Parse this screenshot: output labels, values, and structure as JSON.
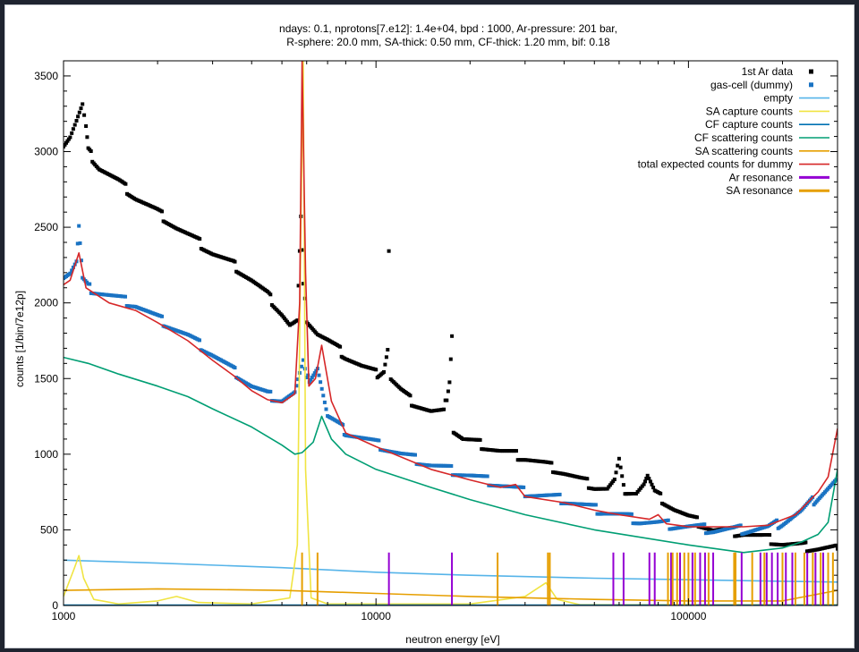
{
  "chart_data": {
    "type": "line",
    "title": "ndays: 0.1, nprotons[7.e12]:  1.4e+04, bpd : 1000, Ar-pressure: 201 bar,",
    "subtitle": "R-sphere: 20.0 mm, SA-thick: 0.50 mm, CF-thick: 1.20 mm, bif: 0.18",
    "xlabel": "neutron energy [eV]",
    "ylabel": "counts [1/bin/7e12p]",
    "xscale": "log",
    "xlim": [
      1000,
      300000
    ],
    "ylim": [
      0,
      3600
    ],
    "x_ticks": [
      "1000",
      "10000",
      "100000"
    ],
    "y_ticks": [
      "0",
      "500",
      "1000",
      "1500",
      "2000",
      "2500",
      "3000",
      "3500"
    ],
    "legend_position": "top-right",
    "grid": false,
    "series": [
      {
        "name": "1st Ar data",
        "style": "points",
        "color": "#000000",
        "points": [
          [
            1000,
            3050
          ],
          [
            1050,
            3100
          ],
          [
            1100,
            3200
          ],
          [
            1150,
            3300
          ],
          [
            1180,
            3150
          ],
          [
            1200,
            3000
          ],
          [
            1300,
            2900
          ],
          [
            1500,
            2800
          ],
          [
            1700,
            2700
          ],
          [
            2000,
            2600
          ],
          [
            2300,
            2500
          ],
          [
            2700,
            2400
          ],
          [
            3000,
            2330
          ],
          [
            3500,
            2250
          ],
          [
            4000,
            2150
          ],
          [
            4500,
            2050
          ],
          [
            5000,
            1930
          ],
          [
            5300,
            1850
          ],
          [
            5600,
            1870
          ],
          [
            5750,
            2550
          ],
          [
            5850,
            2100
          ],
          [
            6000,
            1900
          ],
          [
            6500,
            1800
          ],
          [
            7000,
            1750
          ],
          [
            8000,
            1650
          ],
          [
            9000,
            1580
          ],
          [
            10000,
            1530
          ],
          [
            10600,
            1560
          ],
          [
            10900,
            1700
          ],
          [
            11000,
            2350
          ],
          [
            11150,
            1500
          ],
          [
            12000,
            1420
          ],
          [
            13000,
            1350
          ],
          [
            15000,
            1280
          ],
          [
            16500,
            1270
          ],
          [
            17200,
            1500
          ],
          [
            17500,
            1800
          ],
          [
            17700,
            1160
          ],
          [
            19000,
            1100
          ],
          [
            22000,
            1060
          ],
          [
            25000,
            1020
          ],
          [
            30000,
            980
          ],
          [
            35000,
            930
          ],
          [
            40000,
            880
          ],
          [
            45000,
            830
          ],
          [
            50000,
            790
          ],
          [
            55000,
            770
          ],
          [
            58000,
            820
          ],
          [
            60000,
            950
          ],
          [
            62000,
            770
          ],
          [
            68000,
            750
          ],
          [
            72000,
            800
          ],
          [
            74000,
            850
          ],
          [
            78000,
            740
          ],
          [
            85000,
            680
          ],
          [
            90000,
            640
          ],
          [
            95000,
            610
          ],
          [
            100000,
            580
          ],
          [
            110000,
            540
          ],
          [
            120000,
            500
          ],
          [
            150000,
            480
          ],
          [
            180000,
            440
          ],
          [
            200000,
            410
          ],
          [
            230000,
            390
          ],
          [
            260000,
            380
          ],
          [
            300000,
            375
          ]
        ]
      },
      {
        "name": "gas-cell (dummy)",
        "style": "points",
        "color": "#1a73c3",
        "points": [
          [
            1000,
            2180
          ],
          [
            1050,
            2200
          ],
          [
            1100,
            2270
          ],
          [
            1120,
            2500
          ],
          [
            1150,
            2150
          ],
          [
            1200,
            2100
          ],
          [
            1400,
            2050
          ],
          [
            1700,
            1990
          ],
          [
            2000,
            1900
          ],
          [
            2500,
            1780
          ],
          [
            3000,
            1660
          ],
          [
            3500,
            1550
          ],
          [
            4000,
            1450
          ],
          [
            4500,
            1390
          ],
          [
            5000,
            1360
          ],
          [
            5500,
            1400
          ],
          [
            5700,
            1520
          ],
          [
            5850,
            1600
          ],
          [
            6000,
            1480
          ],
          [
            6500,
            1580
          ],
          [
            7000,
            1250
          ],
          [
            8000,
            1150
          ],
          [
            10000,
            1070
          ],
          [
            12000,
            1000
          ],
          [
            15000,
            930
          ],
          [
            20000,
            860
          ],
          [
            25000,
            800
          ],
          [
            30000,
            750
          ],
          [
            40000,
            700
          ],
          [
            50000,
            640
          ],
          [
            60000,
            600
          ],
          [
            70000,
            560
          ],
          [
            80000,
            540
          ],
          [
            100000,
            520
          ],
          [
            120000,
            500
          ],
          [
            150000,
            500
          ],
          [
            180000,
            510
          ],
          [
            200000,
            550
          ],
          [
            230000,
            620
          ],
          [
            260000,
            720
          ],
          [
            300000,
            830
          ]
        ]
      },
      {
        "name": "empty",
        "style": "line",
        "color": "#56b4e9",
        "points": [
          [
            1000,
            300
          ],
          [
            2000,
            280
          ],
          [
            5000,
            250
          ],
          [
            10000,
            220
          ],
          [
            20000,
            200
          ],
          [
            50000,
            180
          ],
          [
            100000,
            170
          ],
          [
            200000,
            160
          ],
          [
            300000,
            155
          ]
        ]
      },
      {
        "name": "SA capture counts",
        "style": "line",
        "color": "#f0e442",
        "points": [
          [
            1000,
            60
          ],
          [
            1080,
            240
          ],
          [
            1120,
            330
          ],
          [
            1160,
            180
          ],
          [
            1250,
            40
          ],
          [
            1500,
            10
          ],
          [
            2000,
            30
          ],
          [
            2300,
            60
          ],
          [
            2700,
            20
          ],
          [
            4000,
            10
          ],
          [
            5300,
            50
          ],
          [
            5600,
            400
          ],
          [
            5750,
            2500
          ],
          [
            5850,
            3600
          ],
          [
            5950,
            900
          ],
          [
            6200,
            50
          ],
          [
            7000,
            10
          ],
          [
            20000,
            10
          ],
          [
            30000,
            60
          ],
          [
            35000,
            150
          ],
          [
            38000,
            40
          ],
          [
            45000,
            5
          ],
          [
            300000,
            5
          ]
        ]
      },
      {
        "name": "CF capture counts",
        "style": "line",
        "color": "#0072b2",
        "points": [
          [
            1000,
            3
          ],
          [
            300000,
            3
          ]
        ]
      },
      {
        "name": "CF scattering counts",
        "style": "line",
        "color": "#009e73",
        "points": [
          [
            1000,
            1640
          ],
          [
            1200,
            1600
          ],
          [
            1500,
            1530
          ],
          [
            2000,
            1450
          ],
          [
            2500,
            1380
          ],
          [
            3000,
            1300
          ],
          [
            4000,
            1180
          ],
          [
            5000,
            1060
          ],
          [
            5500,
            1000
          ],
          [
            5800,
            1010
          ],
          [
            6300,
            1080
          ],
          [
            6700,
            1250
          ],
          [
            7200,
            1100
          ],
          [
            8000,
            1000
          ],
          [
            10000,
            900
          ],
          [
            15000,
            780
          ],
          [
            20000,
            700
          ],
          [
            30000,
            600
          ],
          [
            50000,
            500
          ],
          [
            100000,
            400
          ],
          [
            150000,
            350
          ],
          [
            200000,
            380
          ],
          [
            230000,
            420
          ],
          [
            260000,
            470
          ],
          [
            280000,
            550
          ],
          [
            300000,
            900
          ]
        ]
      },
      {
        "name": "SA scattering counts",
        "style": "line",
        "color": "#e69f00",
        "points": [
          [
            1000,
            100
          ],
          [
            2000,
            110
          ],
          [
            5000,
            100
          ],
          [
            10000,
            80
          ],
          [
            20000,
            60
          ],
          [
            50000,
            40
          ],
          [
            100000,
            30
          ],
          [
            200000,
            30
          ],
          [
            300000,
            100
          ]
        ]
      },
      {
        "name": "total expected counts for dummy",
        "style": "line",
        "color": "#d62728",
        "points": [
          [
            1000,
            2120
          ],
          [
            1050,
            2150
          ],
          [
            1120,
            2330
          ],
          [
            1180,
            2100
          ],
          [
            1400,
            2000
          ],
          [
            1700,
            1950
          ],
          [
            2000,
            1870
          ],
          [
            2500,
            1750
          ],
          [
            3000,
            1620
          ],
          [
            3500,
            1520
          ],
          [
            4000,
            1420
          ],
          [
            4500,
            1360
          ],
          [
            5000,
            1340
          ],
          [
            5500,
            1400
          ],
          [
            5700,
            2000
          ],
          [
            5800,
            3600
          ],
          [
            5950,
            2200
          ],
          [
            6100,
            1450
          ],
          [
            6400,
            1500
          ],
          [
            6700,
            1720
          ],
          [
            7200,
            1350
          ],
          [
            8000,
            1140
          ],
          [
            10000,
            1050
          ],
          [
            15000,
            900
          ],
          [
            20000,
            830
          ],
          [
            25000,
            780
          ],
          [
            28000,
            800
          ],
          [
            30000,
            720
          ],
          [
            40000,
            680
          ],
          [
            50000,
            630
          ],
          [
            60000,
            600
          ],
          [
            75000,
            570
          ],
          [
            80000,
            600
          ],
          [
            85000,
            540
          ],
          [
            100000,
            520
          ],
          [
            150000,
            520
          ],
          [
            180000,
            530
          ],
          [
            220000,
            600
          ],
          [
            260000,
            750
          ],
          [
            280000,
            850
          ],
          [
            300000,
            1170
          ]
        ]
      },
      {
        "name": "Ar resonance",
        "style": "impulse",
        "color": "#9400d3",
        "x": [
          11000,
          17500,
          57500,
          62000,
          75000,
          78000,
          88000,
          94000,
          103000,
          109000,
          113000,
          120000,
          148000,
          170000,
          178000,
          185000,
          193000,
          205000,
          215000,
          240000,
          255000,
          270000
        ],
        "height": 350
      },
      {
        "name": "SA resonance",
        "style": "impulse",
        "color": "#e69f00",
        "x": [
          5800,
          6500,
          24500,
          35500,
          36000,
          86000,
          89000,
          92000,
          97000,
          100000,
          105000,
          116000,
          140000,
          141500,
          160000,
          175000,
          200000,
          220000,
          235000,
          250000,
          265000,
          280000,
          290000
        ],
        "height": 350
      }
    ]
  }
}
